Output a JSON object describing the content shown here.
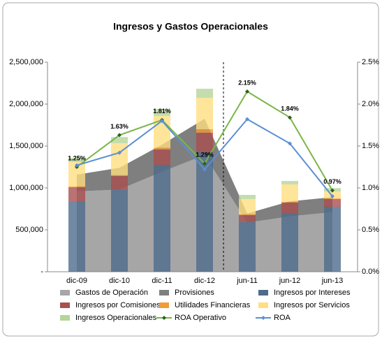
{
  "chart_data": {
    "type": "combo",
    "title": "Ingresos y Gastos Operacionales",
    "categories": [
      "dic-09",
      "dic-10",
      "dic-11",
      "dic-12",
      "jun-11",
      "jun-12",
      "jun-13"
    ],
    "ylim": [
      0,
      2500000
    ],
    "yticks": [
      {
        "value": 0,
        "label": "-"
      },
      {
        "value": 500000,
        "label": "500,000"
      },
      {
        "value": 1000000,
        "label": "1,000,000"
      },
      {
        "value": 1500000,
        "label": "1,500,000"
      },
      {
        "value": 2000000,
        "label": "2,000,000"
      },
      {
        "value": 2500000,
        "label": "2,500,000"
      }
    ],
    "y2lim": [
      0,
      2.5
    ],
    "y2ticks": [
      {
        "value": 0,
        "label": "0.0%"
      },
      {
        "value": 0.5,
        "label": "0.5%"
      },
      {
        "value": 1,
        "label": "1.0%"
      },
      {
        "value": 1.5,
        "label": "1.5%"
      },
      {
        "value": 2,
        "label": "2.0%"
      },
      {
        "value": 2.5,
        "label": "2.5%"
      }
    ],
    "series": [
      {
        "name": "Gastos de Operación",
        "type": "area",
        "color": "#a6a6a6",
        "values": [
          958000,
          980000,
          1192000,
          1392000,
          585000,
          660000,
          710000
        ]
      },
      {
        "name": "Provisiones",
        "type": "area",
        "color": "#7f7f7f",
        "values": [
          200000,
          260000,
          325000,
          433000,
          110000,
          180000,
          180000
        ]
      },
      {
        "name": "Ingresos por Intereses",
        "type": "bar",
        "color": "#4e6b8c",
        "values": [
          842000,
          975000,
          1275000,
          1425000,
          592000,
          700000,
          775000
        ]
      },
      {
        "name": "Ingresos por Comisiones",
        "type": "bar",
        "color": "#a94f4f",
        "values": [
          166000,
          167000,
          183000,
          233000,
          83000,
          125000,
          92000
        ]
      },
      {
        "name": "Utilidades Financieras",
        "type": "bar",
        "color": "#f39a3a",
        "values": [
          10000,
          10000,
          20000,
          42000,
          10000,
          10000,
          10000
        ]
      },
      {
        "name": "Ingresos por Servicios",
        "type": "bar",
        "color": "#ffdf80",
        "values": [
          290000,
          380000,
          380000,
          375000,
          182000,
          207000,
          80000
        ]
      },
      {
        "name": "Ingresos Operacionales",
        "type": "bar",
        "color": "#b5d59a",
        "values": [
          50000,
          75000,
          84000,
          108000,
          50000,
          41000,
          40000
        ]
      },
      {
        "name": "ROA Operativo",
        "type": "line",
        "axis": "y2",
        "color": "#7ab648",
        "values": [
          1.25,
          1.63,
          1.81,
          1.29,
          2.15,
          1.84,
          0.97
        ],
        "value_labels": [
          "1.25%",
          "1.63%",
          "1.81%",
          "1.29%",
          "2.15%",
          "1.84%",
          "0.97%"
        ]
      },
      {
        "name": "ROA",
        "type": "line",
        "axis": "y2",
        "color": "#5b8fd4",
        "values": [
          1.27,
          1.42,
          1.8,
          1.22,
          1.82,
          1.53,
          0.9
        ]
      }
    ]
  }
}
